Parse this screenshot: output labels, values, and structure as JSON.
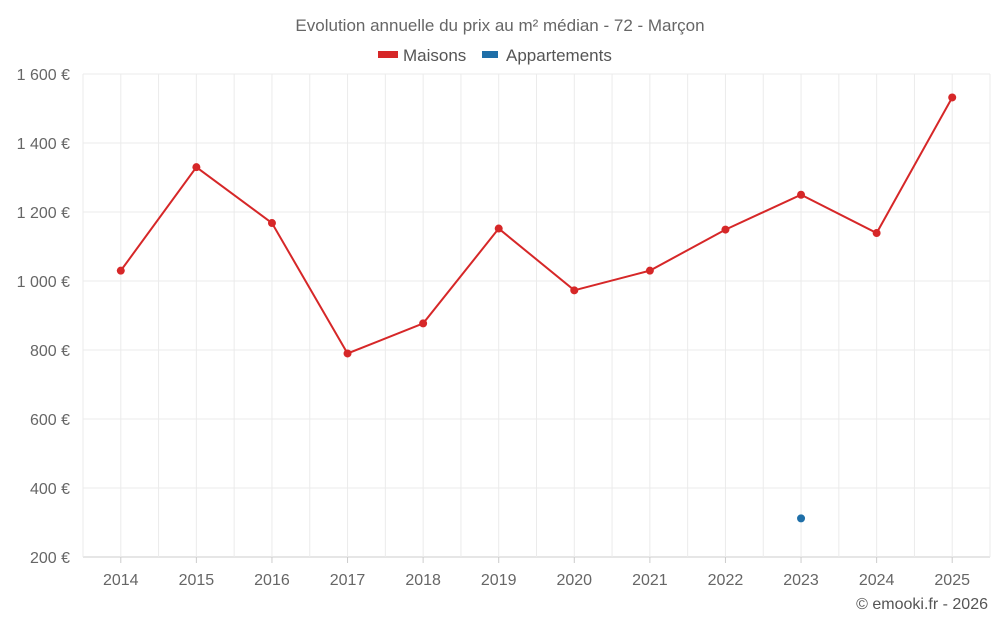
{
  "chart_data": {
    "type": "line",
    "title": "Evolution annuelle du prix au m² médian - 72 - Marçon",
    "categories": [
      "2014",
      "2015",
      "2016",
      "2017",
      "2018",
      "2019",
      "2020",
      "2021",
      "2022",
      "2023",
      "2024",
      "2025"
    ],
    "series": [
      {
        "name": "Maisons",
        "color": "#d62728",
        "values": [
          1030,
          1330,
          1168,
          790,
          877,
          1152,
          973,
          1030,
          1149,
          1250,
          1139,
          1532
        ]
      },
      {
        "name": "Appartements",
        "color": "#1f6fa8",
        "values": [
          null,
          null,
          null,
          null,
          null,
          null,
          null,
          null,
          null,
          312,
          null,
          null
        ]
      }
    ],
    "ylim": [
      200,
      1600
    ],
    "yticks": [
      200,
      400,
      600,
      800,
      1000,
      1200,
      1400,
      1600
    ],
    "ytick_labels": [
      "200 €",
      "400 €",
      "600 €",
      "800 €",
      "1 000 €",
      "1 200 €",
      "1 400 €",
      "1 600 €"
    ],
    "xlabel": "",
    "ylabel": "",
    "grid": true,
    "legend_position": "top-center"
  },
  "credit": "© emooki.fr - 2026"
}
